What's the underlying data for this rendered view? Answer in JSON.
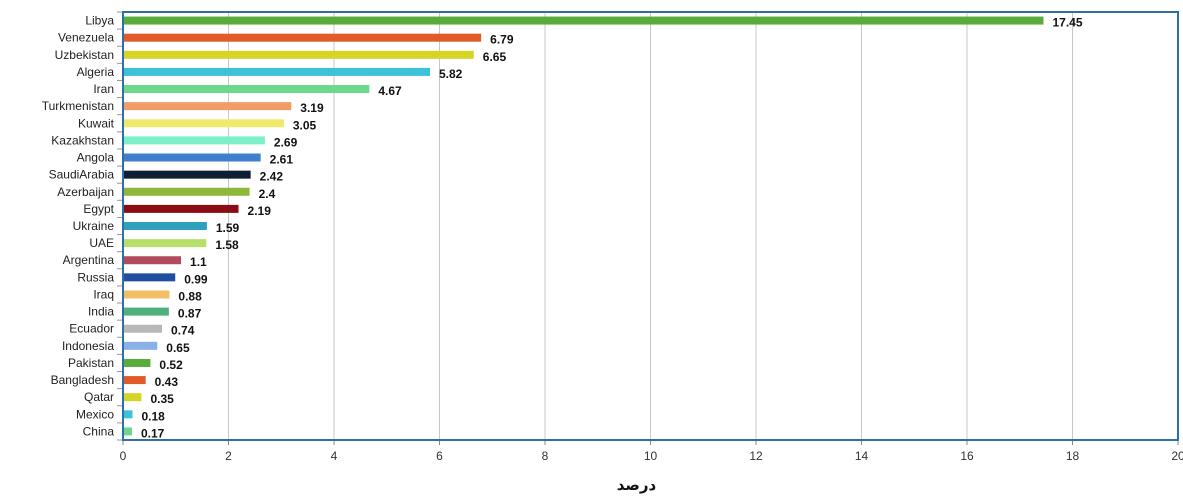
{
  "chart_data": {
    "type": "bar",
    "orientation": "horizontal",
    "categories": [
      "Libya",
      "Venezuela",
      "Uzbekistan",
      "Algeria",
      "Iran",
      "Turkmenistan",
      "Kuwait",
      "Kazakhstan",
      "Angola",
      "SaudiArabia",
      "Azerbaijan",
      "Egypt",
      "Ukraine",
      "UAE",
      "Argentina",
      "Russia",
      "Iraq",
      "India",
      "Ecuador",
      "Indonesia",
      "Pakistan",
      "Bangladesh",
      "Qatar",
      "Mexico",
      "China"
    ],
    "values": [
      17.45,
      6.79,
      6.65,
      5.82,
      4.67,
      3.19,
      3.05,
      2.69,
      2.61,
      2.42,
      2.4,
      2.19,
      1.59,
      1.58,
      1.1,
      0.99,
      0.88,
      0.87,
      0.74,
      0.65,
      0.52,
      0.43,
      0.35,
      0.18,
      0.17
    ],
    "value_labels": [
      "17.45",
      "6.79",
      "6.65",
      "5.82",
      "4.67",
      "3.19",
      "3.05",
      "2.69",
      "2.61",
      "2.42",
      "2.4",
      "2.19",
      "1.59",
      "1.58",
      "1.1",
      "0.99",
      "0.88",
      "0.87",
      "0.74",
      "0.65",
      "0.52",
      "0.43",
      "0.35",
      "0.18",
      "0.17"
    ],
    "colors": [
      "#5aab3c",
      "#e05a2a",
      "#d6d424",
      "#3cc1d8",
      "#6bd88a",
      "#f29a68",
      "#f0ea6c",
      "#7ef0c8",
      "#3f80cc",
      "#0f1f33",
      "#8fb83a",
      "#8a0c14",
      "#2f9fbe",
      "#b6e06a",
      "#b04c5c",
      "#1f4f9e",
      "#f2bf66",
      "#4fb07c",
      "#b8b8b8",
      "#8ab0e8",
      "#5aab3c",
      "#e05a2a",
      "#d6d424",
      "#3cc1d8",
      "#6bd88a"
    ],
    "xticks": [
      "0",
      "2",
      "4",
      "6",
      "8",
      "10",
      "12",
      "14",
      "16",
      "18",
      "20"
    ],
    "xlim": [
      0,
      20
    ],
    "xlabel": "درصد",
    "ylabel": "",
    "title": "",
    "grid": true,
    "legend": "none"
  }
}
